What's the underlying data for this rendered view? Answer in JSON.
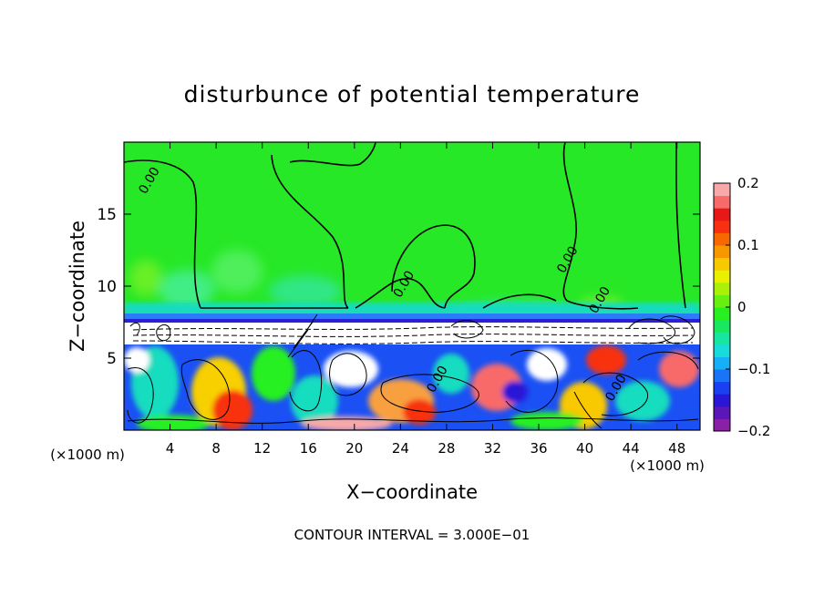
{
  "chart_data": {
    "type": "heatmap",
    "title": "disturbunce of potential temperature",
    "xlabel": "X−coordinate",
    "ylabel": "Z−coordinate",
    "x_unit_left": "(×1000 m)",
    "x_unit_right": "(×1000 m)",
    "footer": "CONTOUR INTERVAL = 3.000E−01",
    "xlim": [
      0,
      50
    ],
    "ylim": [
      0,
      20
    ],
    "xticks": [
      4,
      8,
      12,
      16,
      20,
      24,
      28,
      32,
      36,
      40,
      44,
      48
    ],
    "yticks": [
      5,
      10,
      15
    ],
    "colorbar": {
      "range": [
        -0.2,
        0.2
      ],
      "ticks": [
        {
          "value": 0.2,
          "label": "0.2"
        },
        {
          "value": 0.1,
          "label": "0.1"
        },
        {
          "value": 0,
          "label": "0"
        },
        {
          "value": -0.1,
          "label": "−0.1"
        },
        {
          "value": -0.2,
          "label": "−0.2"
        }
      ],
      "colors": [
        "#8a1fa8",
        "#5a16b8",
        "#2a16d6",
        "#1a40f2",
        "#1a74f8",
        "#16b0f6",
        "#18dcdc",
        "#16e6a0",
        "#18e860",
        "#28f020",
        "#66f010",
        "#aaf008",
        "#e8f000",
        "#f8c800",
        "#f89800",
        "#f86800",
        "#f83010",
        "#e81818",
        "#f86a6a",
        "#f8a8a8"
      ]
    },
    "contour_labels": [
      {
        "x": 2.5,
        "z": 17.2,
        "label": "0.00"
      },
      {
        "x": 38.8,
        "z": 11.7,
        "label": "0.00"
      },
      {
        "x": 24.6,
        "z": 10.0,
        "label": "0.00"
      },
      {
        "x": 41.6,
        "z": 8.9,
        "label": "0.00"
      },
      {
        "x": 27.5,
        "z": 3.4,
        "label": "0.00"
      },
      {
        "x": 43.0,
        "z": 2.8,
        "label": "0.00"
      }
    ]
  }
}
